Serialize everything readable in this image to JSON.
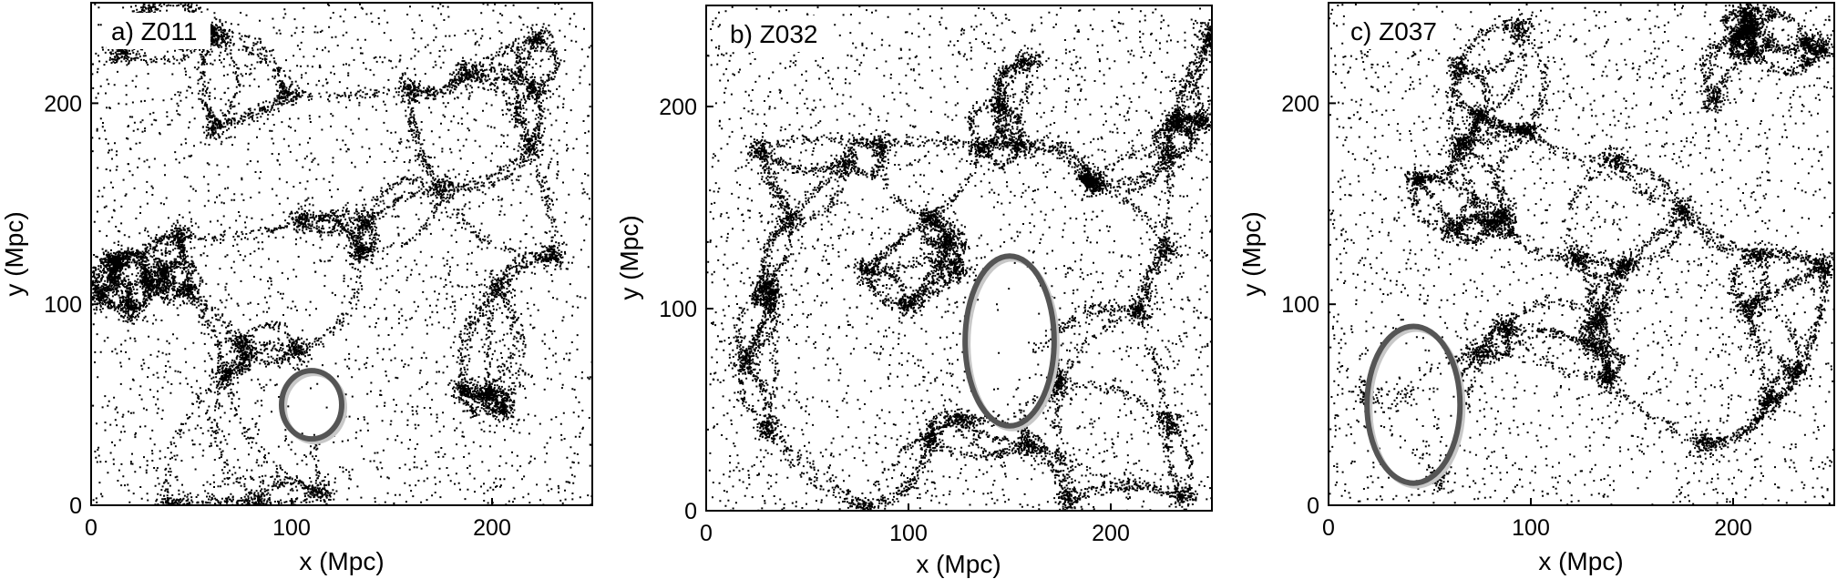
{
  "chart_data": [
    {
      "type": "scatter",
      "title": "",
      "panel_label": "a) Z011",
      "xlabel": "x (Mpc)",
      "ylabel": "y (Mpc)",
      "xlim": [
        0,
        250
      ],
      "ylim": [
        0,
        250
      ],
      "xticks": [
        0,
        100,
        200
      ],
      "yticks": [
        0,
        100,
        200
      ],
      "grid": false,
      "void_ellipse": {
        "cx": 110,
        "cy": 50,
        "rx": 15,
        "ry": 17
      }
    },
    {
      "type": "scatter",
      "title": "",
      "panel_label": "b) Z032",
      "xlabel": "x (Mpc)",
      "ylabel": "y (Mpc)",
      "xlim": [
        0,
        250
      ],
      "ylim": [
        0,
        250
      ],
      "xticks": [
        0,
        100,
        200
      ],
      "yticks": [
        0,
        100,
        200
      ],
      "grid": false,
      "void_ellipse": {
        "cx": 150,
        "cy": 84,
        "rx": 22,
        "ry": 42
      }
    },
    {
      "type": "scatter",
      "title": "",
      "panel_label": "c) Z037",
      "xlabel": "x (Mpc)",
      "ylabel": "y (Mpc)",
      "xlim": [
        0,
        250
      ],
      "ylim": [
        0,
        250
      ],
      "xticks": [
        0,
        100,
        200
      ],
      "yticks": [
        0,
        100,
        200
      ],
      "grid": false,
      "void_ellipse": {
        "cx": 42,
        "cy": 50,
        "rx": 23,
        "ry": 39
      }
    }
  ]
}
